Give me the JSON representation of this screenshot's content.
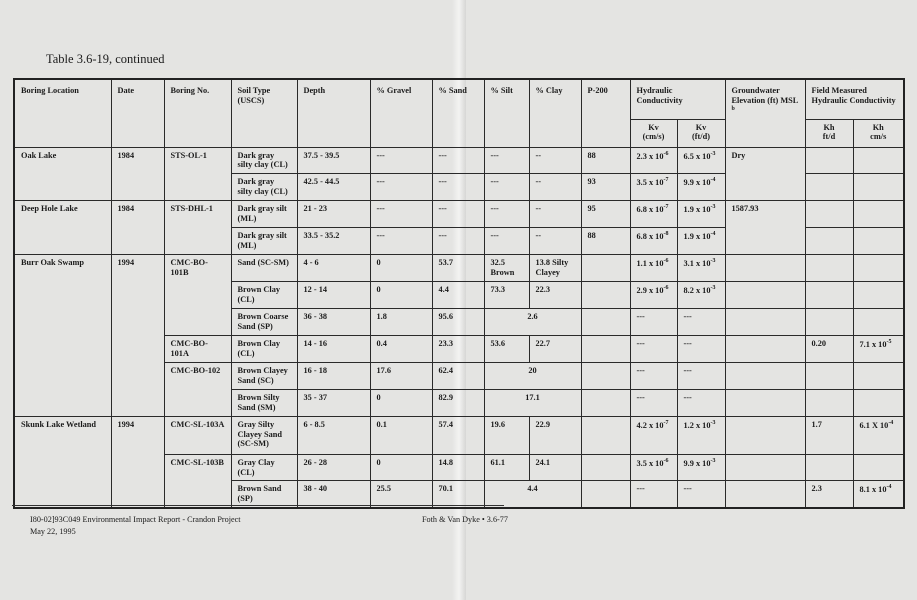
{
  "title": "Table 3.6-19, continued",
  "headers": {
    "location": "Boring Location",
    "date": "Date",
    "boring": "Boring No.",
    "soil": "Soil Type (USCS)",
    "depth": "Depth",
    "gravel": "% Gravel",
    "sand": "% Sand",
    "silt": "% Silt",
    "clay": "% Clay",
    "p200": "P-200",
    "hydraulic": "Hydraulic Conductivity",
    "kv_cms": [
      "Kv",
      "(cm/s)"
    ],
    "kv_ftd": [
      "Kv",
      "(ft/d)"
    ],
    "groundwater": "Groundwater Elevation (ft) MSL",
    "groundwater_note": "b",
    "field": "Field Measured Hydraulic Conductivity",
    "kh_ftd": [
      "Kh",
      "ft/d"
    ],
    "kh_cms": [
      "Kh",
      "cm/s"
    ]
  },
  "locations": [
    {
      "name": "Oak Lake",
      "date": "1984",
      "groundwater": "Dry",
      "borings": [
        {
          "id": "STS-OL-1",
          "samples": [
            {
              "soil": "Dark gray silty clay (CL)",
              "depth": "37.5 - 39.5",
              "gravel": "---",
              "sand": "---",
              "silt": "---",
              "clay": "--",
              "p200": "88",
              "kv_cms": {
                "m": "2.3 x 10",
                "e": "-6"
              },
              "kv_ftd": {
                "m": "6.5 x 10",
                "e": "-3"
              },
              "kh_ftd": "",
              "kh_cms": null
            },
            {
              "soil": "Dark gray silty clay (CL)",
              "depth": "42.5 - 44.5",
              "gravel": "---",
              "sand": "---",
              "silt": "---",
              "clay": "--",
              "p200": "93",
              "kv_cms": {
                "m": "3.5 x 10",
                "e": "-7"
              },
              "kv_ftd": {
                "m": "9.9 x 10",
                "e": "-4"
              },
              "kh_ftd": "",
              "kh_cms": null
            }
          ]
        }
      ]
    },
    {
      "name": "Deep Hole Lake",
      "date": "1984",
      "groundwater": "1587.93",
      "borings": [
        {
          "id": "STS-DHL-1",
          "samples": [
            {
              "soil": "Dark gray silt (ML)",
              "depth": "21 - 23",
              "gravel": "---",
              "sand": "---",
              "silt": "---",
              "clay": "--",
              "p200": "95",
              "kv_cms": {
                "m": "6.8 x 10",
                "e": "-7"
              },
              "kv_ftd": {
                "m": "1.9 x 10",
                "e": "-3"
              },
              "kh_ftd": "",
              "kh_cms": null
            },
            {
              "soil": "Dark gray silt (ML)",
              "depth": "33.5 - 35.2",
              "gravel": "---",
              "sand": "---",
              "silt": "---",
              "clay": "--",
              "p200": "88",
              "kv_cms": {
                "m": "6.8 x 10",
                "e": "-8"
              },
              "kv_ftd": {
                "m": "1.9 x 10",
                "e": "-4"
              },
              "kh_ftd": "",
              "kh_cms": null
            }
          ]
        }
      ]
    },
    {
      "name": "Burr Oak Swamp",
      "date": "1994",
      "groundwater": "",
      "borings": [
        {
          "id": "CMC-BO-101B",
          "samples": [
            {
              "soil": "Sand (SC-SM)",
              "depth": "4 - 6",
              "gravel": "0",
              "sand": "53.7",
              "silt": "32.5 Brown",
              "clay": "13.8 Silty Clayey",
              "p200": "",
              "kv_cms": {
                "m": "1.1 x 10",
                "e": "-6"
              },
              "kv_ftd": {
                "m": "3.1 x 10",
                "e": "-3"
              },
              "kh_ftd": "",
              "kh_cms": null
            },
            {
              "soil": "Brown Clay (CL)",
              "depth": "12 - 14",
              "gravel": "0",
              "sand": "4.4",
              "silt": "73.3",
              "clay": "22.3",
              "p200": "",
              "kv_cms": {
                "m": "2.9 x 10",
                "e": "-6"
              },
              "kv_ftd": {
                "m": "8.2 x 10",
                "e": "-3"
              },
              "kh_ftd": "",
              "kh_cms": null
            },
            {
              "soil": "Brown Coarse Sand (SP)",
              "depth": "36 - 38",
              "gravel": "1.8",
              "sand": "95.6",
              "silt_clay": "2.6",
              "p200": "",
              "kv_cms": {
                "m": "---",
                "e": ""
              },
              "kv_ftd": {
                "m": "---",
                "e": ""
              },
              "kh_ftd": "",
              "kh_cms": null
            }
          ]
        },
        {
          "id": "CMC-BO-101A",
          "samples": [
            {
              "soil": "Brown Clay (CL)",
              "depth": "14 - 16",
              "gravel": "0.4",
              "sand": "23.3",
              "silt": "53.6",
              "clay": "22.7",
              "p200": "",
              "kv_cms": {
                "m": "---",
                "e": ""
              },
              "kv_ftd": {
                "m": "---",
                "e": ""
              },
              "kh_ftd": "0.20",
              "kh_cms": {
                "m": "7.1 x 10",
                "e": "-5"
              }
            }
          ]
        },
        {
          "id": "CMC-BO-102",
          "samples": [
            {
              "soil": "Brown Clayey Sand (SC)",
              "depth": "16 - 18",
              "gravel": "17.6",
              "sand": "62.4",
              "silt_clay": "20",
              "p200": "",
              "kv_cms": {
                "m": "---",
                "e": ""
              },
              "kv_ftd": {
                "m": "---",
                "e": ""
              },
              "kh_ftd": "",
              "kh_cms": null
            },
            {
              "soil": "Brown Silty Sand (SM)",
              "depth": "35 - 37",
              "gravel": "0",
              "sand": "82.9",
              "silt_clay": "17.1",
              "p200": "",
              "kv_cms": {
                "m": "---",
                "e": ""
              },
              "kv_ftd": {
                "m": "---",
                "e": ""
              },
              "kh_ftd": "",
              "kh_cms": null
            }
          ]
        }
      ]
    },
    {
      "name": "Skunk Lake Wetland",
      "date": "1994",
      "groundwater": "",
      "borings": [
        {
          "id": "CMC-SL-103A",
          "samples": [
            {
              "soil": "Gray Silty Clayey Sand (SC-SM)",
              "depth": "6 - 8.5",
              "gravel": "0.1",
              "sand": "57.4",
              "silt": "19.6",
              "clay": "22.9",
              "p200": "",
              "kv_cms": {
                "m": "4.2 x 10",
                "e": "-7"
              },
              "kv_ftd": {
                "m": "1.2 x 10",
                "e": "-3"
              },
              "kh_ftd": "1.7",
              "kh_cms": {
                "m": "6.1 X 10",
                "e": "-4"
              }
            }
          ]
        },
        {
          "id": "CMC-SL-103B",
          "samples": [
            {
              "soil": "Gray Clay (CL)",
              "depth": "26 - 28",
              "gravel": "0",
              "sand": "14.8",
              "silt": "61.1",
              "clay": "24.1",
              "p200": "",
              "kv_cms": {
                "m": "3.5 x 10",
                "e": "-6"
              },
              "kv_ftd": {
                "m": "9.9 x 10",
                "e": "-3"
              },
              "kh_ftd": "",
              "kh_cms": null
            },
            {
              "soil": "Brown Sand (SP)",
              "depth": "38 - 40",
              "gravel": "25.5",
              "sand": "70.1",
              "silt_clay": "4.4",
              "p200": "",
              "kv_cms": {
                "m": "---",
                "e": ""
              },
              "kv_ftd": {
                "m": "---",
                "e": ""
              },
              "kh_ftd": "2.3",
              "kh_cms": {
                "m": "8.1 x 10",
                "e": "-4"
              }
            }
          ]
        }
      ]
    }
  ],
  "footer": {
    "doc_id": "I80-02]93C049  Environmental Impact Report - Crandon Project",
    "date": "May 22, 1995",
    "publisher": "Foth & Van Dyke  •  3.6-77"
  }
}
